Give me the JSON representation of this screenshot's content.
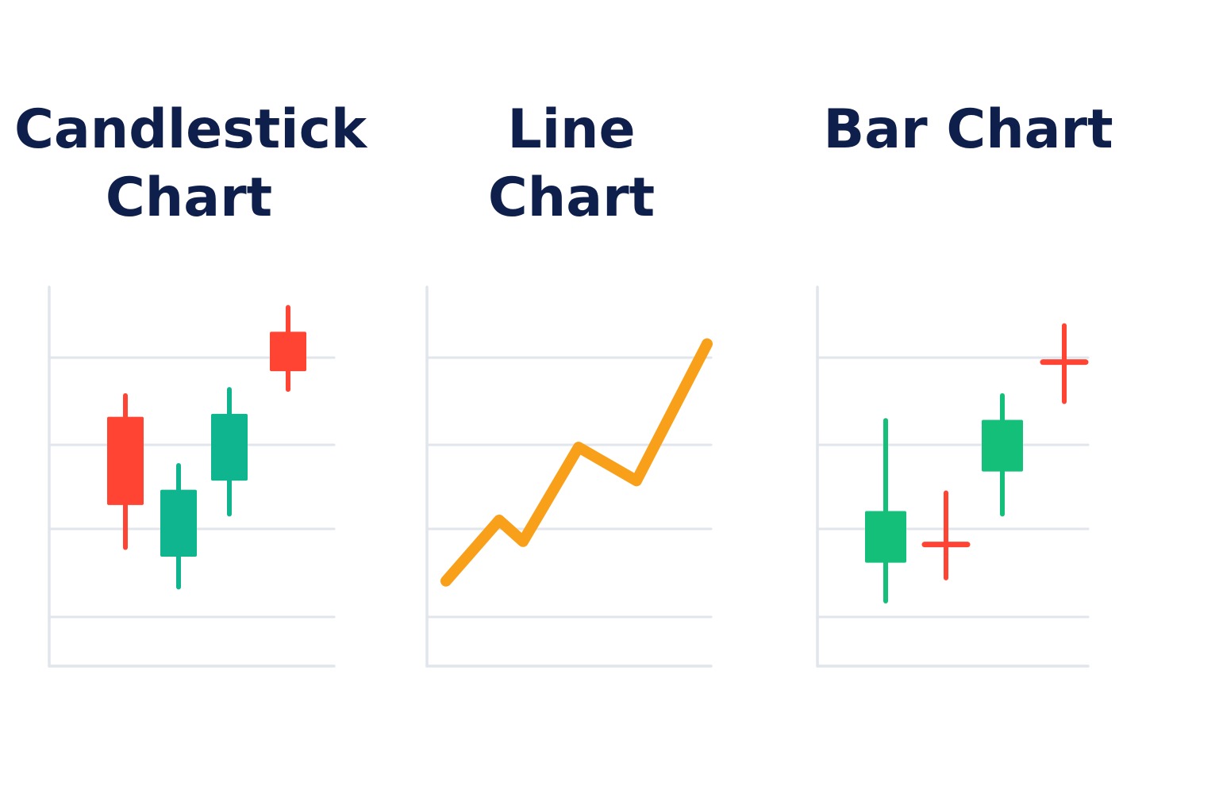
{
  "colors": {
    "title": "#0f1f4b",
    "grid": "#e1e5ec",
    "bullish": "#0fb58f",
    "bar_up": "#14bf7a",
    "bearish": "#ff4433",
    "line": "#f9a01b",
    "background": "#ffffff"
  },
  "chart_data": [
    {
      "type": "candlestick",
      "title": [
        "Candlestick",
        "Chart"
      ],
      "ylim": [
        0,
        6
      ],
      "grid": true,
      "candles": [
        {
          "open": 4.1,
          "close": 2.65,
          "high": 4.45,
          "low": 1.95,
          "color": "bearish"
        },
        {
          "open": 1.8,
          "close": 2.9,
          "high": 3.3,
          "low": 1.3,
          "color": "bullish"
        },
        {
          "open": 3.05,
          "close": 4.15,
          "high": 4.55,
          "low": 2.5,
          "color": "bullish"
        },
        {
          "open": 4.85,
          "close": 5.5,
          "high": 5.9,
          "low": 4.55,
          "color": "bearish"
        }
      ]
    },
    {
      "type": "line",
      "title": [
        "Line",
        "Chart"
      ],
      "ylim": [
        0,
        6
      ],
      "grid": true,
      "series": [
        {
          "color": "line",
          "values": [
            1.4,
            2.4,
            2.05,
            3.6,
            3.05,
            5.3
          ]
        }
      ]
    },
    {
      "type": "ohlc",
      "title": [
        "Bar Chart"
      ],
      "ylim": [
        0,
        6
      ],
      "grid": true,
      "bars": [
        {
          "open": 1.7,
          "close": 2.55,
          "high": 4.04,
          "low": 1.07,
          "color": "bar_up",
          "style": "box"
        },
        {
          "open": 2.0,
          "close": 2.0,
          "high": 2.85,
          "low": 1.45,
          "color": "bearish",
          "style": "cross"
        },
        {
          "open": 3.2,
          "close": 4.05,
          "high": 4.45,
          "low": 2.5,
          "color": "bar_up",
          "style": "box"
        },
        {
          "open": 5.0,
          "close": 5.0,
          "high": 5.6,
          "low": 4.35,
          "color": "bearish",
          "style": "cross"
        }
      ]
    }
  ]
}
